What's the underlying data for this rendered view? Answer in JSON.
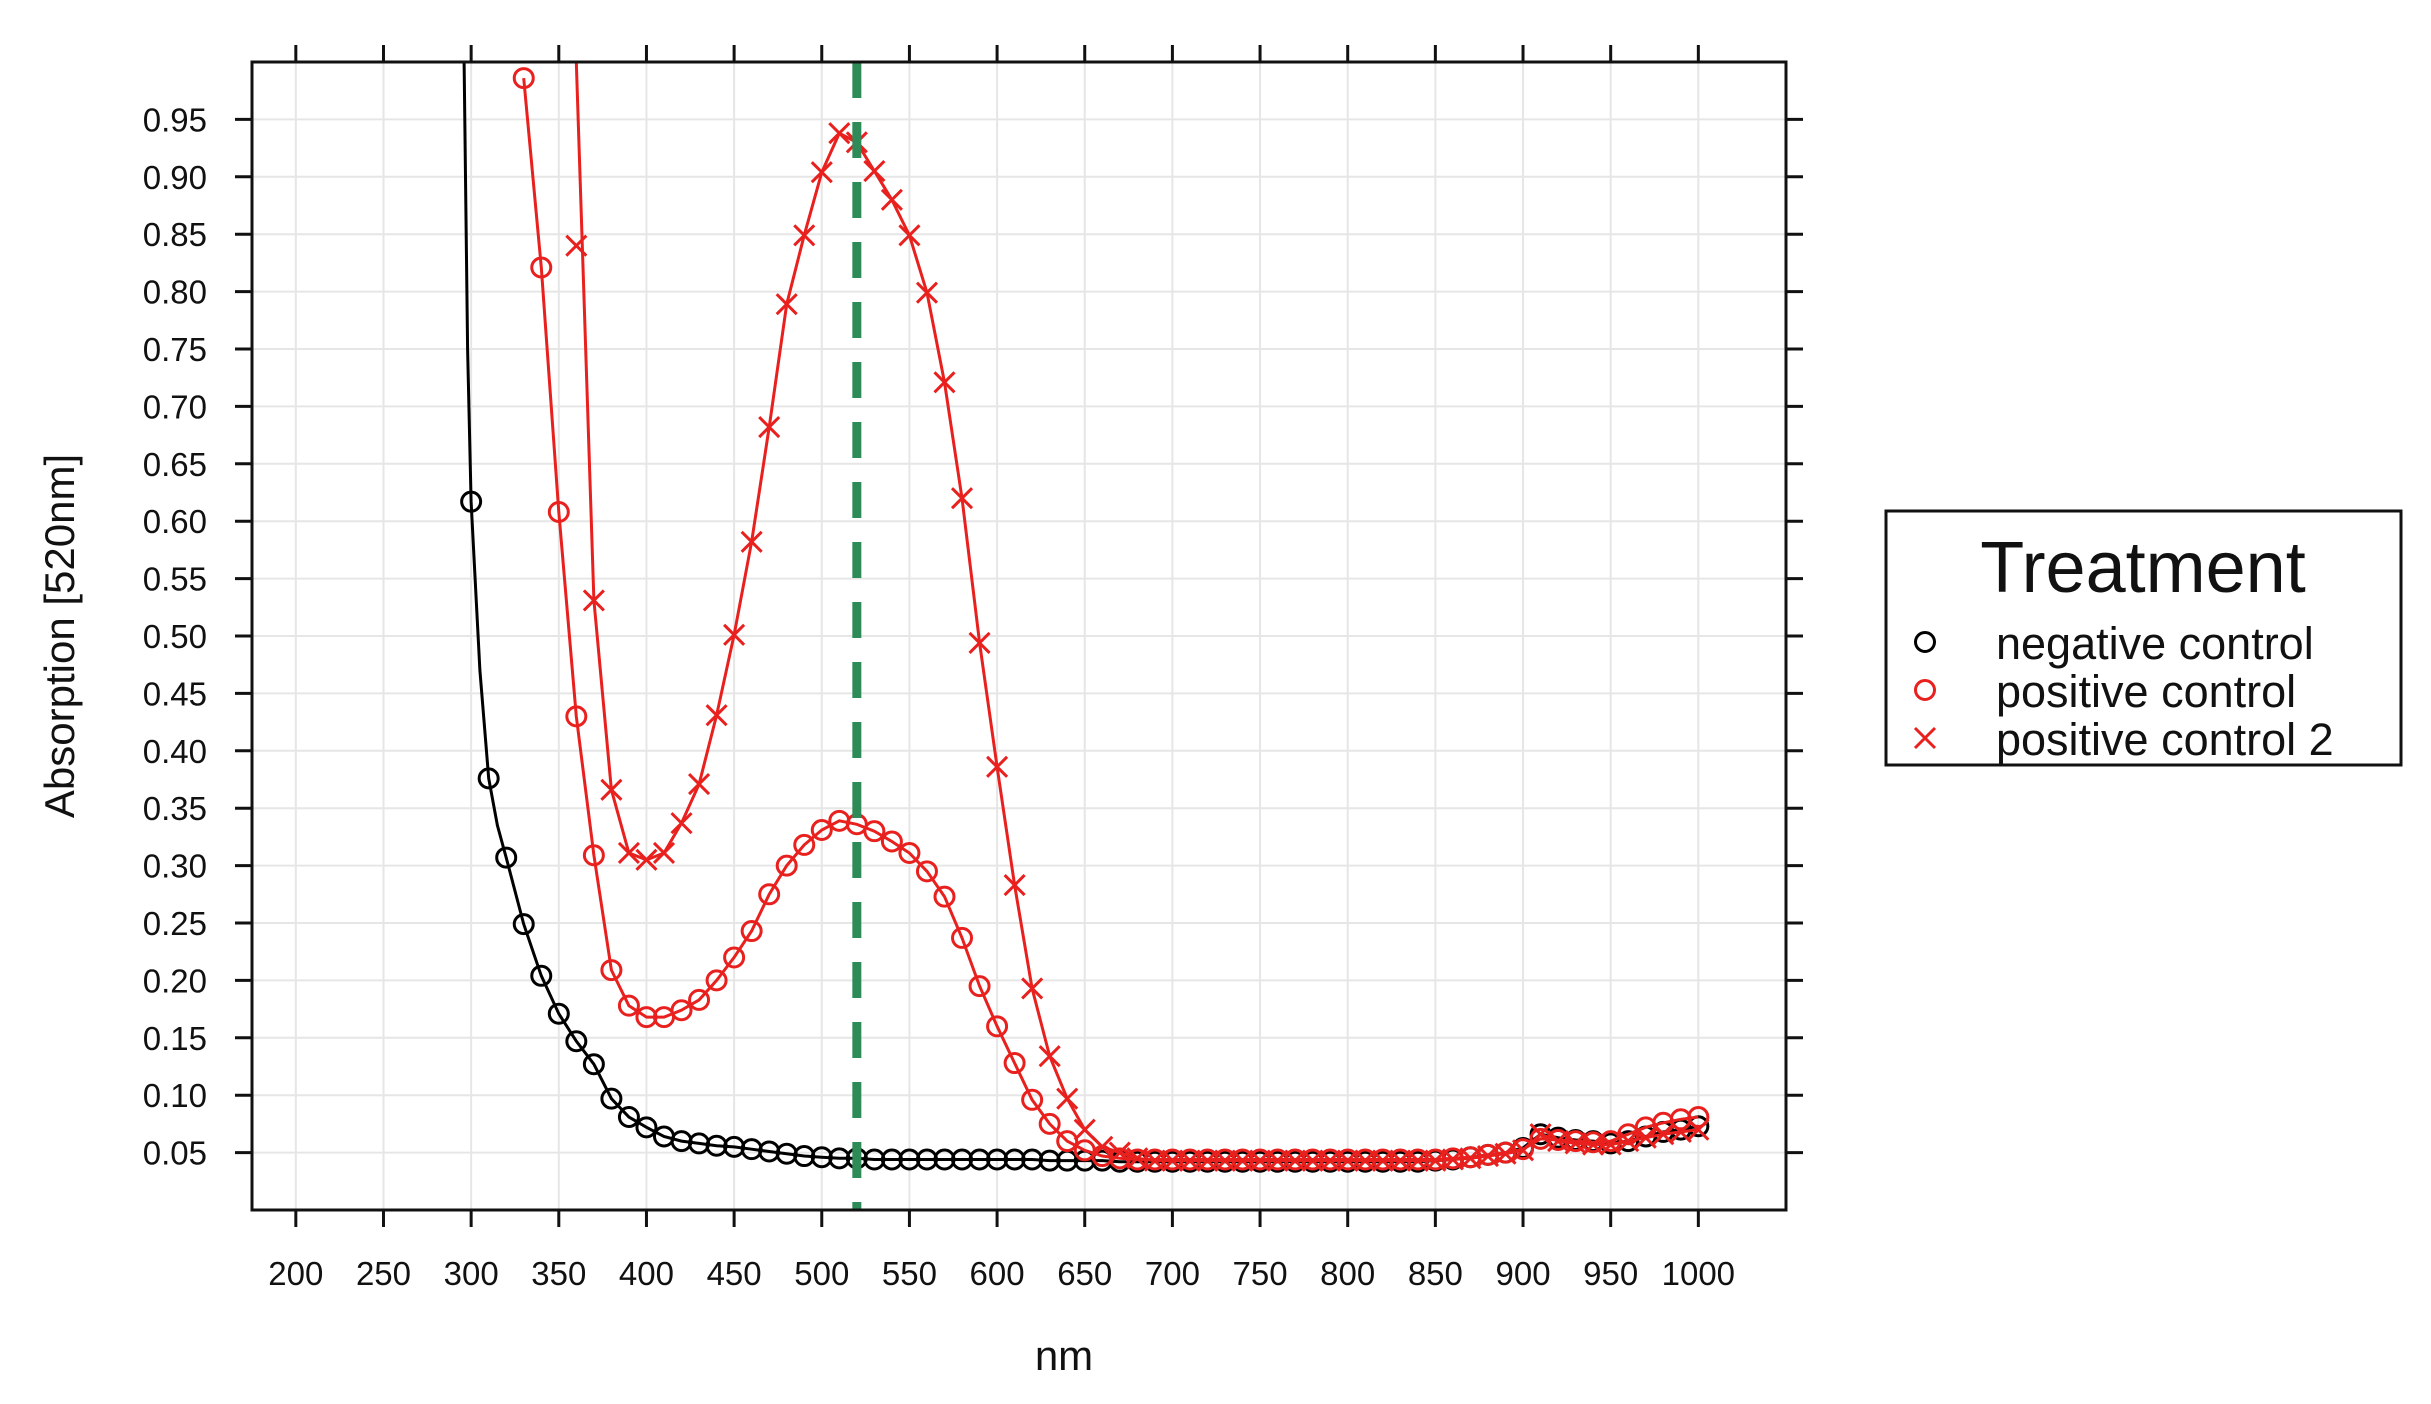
{
  "chart_data": {
    "type": "line",
    "title": "",
    "xlabel": "nm",
    "ylabel": "Absorption [520nm]",
    "xlim": [
      175,
      1050
    ],
    "ylim": [
      0.0,
      1.0
    ],
    "x_ticks": [
      200,
      250,
      300,
      350,
      400,
      450,
      500,
      550,
      600,
      650,
      700,
      750,
      800,
      850,
      900,
      950,
      1000
    ],
    "x_tick_labels": [
      "200",
      "250",
      "300",
      "350",
      "400",
      "450",
      "500",
      "550",
      "600",
      "650",
      "700",
      "750",
      "800",
      "850",
      "900",
      "950",
      "1000"
    ],
    "y_ticks": [
      0.05,
      0.1,
      0.15,
      0.2,
      0.25,
      0.3,
      0.35,
      0.4,
      0.45,
      0.5,
      0.55,
      0.6,
      0.65,
      0.7,
      0.75,
      0.8,
      0.85,
      0.9,
      0.95
    ],
    "y_tick_labels": [
      "0.05",
      "0.10",
      "0.15",
      "0.20",
      "0.25",
      "0.30",
      "0.35",
      "0.40",
      "0.45",
      "0.50",
      "0.55",
      "0.60",
      "0.65",
      "0.70",
      "0.75",
      "0.80",
      "0.85",
      "0.90",
      "0.95"
    ],
    "grid": true,
    "reference_line": {
      "x": 520,
      "color": "#2e8b57",
      "style": "dashed"
    },
    "legend": {
      "title": "Treatment",
      "placement": "right",
      "entries": [
        {
          "label": "negative control",
          "marker": "circle",
          "color": "#000000"
        },
        {
          "label": "positive control",
          "marker": "circle",
          "color": "#e8201e"
        },
        {
          "label": "positive control 2",
          "marker": "cross",
          "color": "#e8201e"
        }
      ]
    },
    "series": [
      {
        "name": "negative control",
        "color": "#000000",
        "marker": "circle",
        "line_points": [
          [
            296,
            1.0
          ],
          [
            298,
            0.75
          ],
          [
            300,
            0.617
          ],
          [
            305,
            0.47
          ],
          [
            310,
            0.376
          ],
          [
            315,
            0.335
          ],
          [
            320,
            0.307
          ],
          [
            330,
            0.249
          ],
          [
            340,
            0.204
          ],
          [
            350,
            0.171
          ],
          [
            360,
            0.147
          ],
          [
            370,
            0.127
          ],
          [
            380,
            0.097
          ],
          [
            390,
            0.081
          ],
          [
            400,
            0.072
          ]
        ],
        "x": [
          300,
          310,
          320,
          330,
          340,
          350,
          360,
          370,
          380,
          390,
          400,
          410,
          420,
          430,
          440,
          450,
          460,
          470,
          480,
          490,
          500,
          510,
          520,
          530,
          540,
          550,
          560,
          570,
          580,
          590,
          600,
          610,
          620,
          630,
          640,
          650,
          660,
          670,
          680,
          690,
          700,
          710,
          720,
          730,
          740,
          750,
          760,
          770,
          780,
          790,
          800,
          810,
          820,
          830,
          840,
          850,
          860,
          870,
          880,
          890,
          900,
          910,
          920,
          930,
          940,
          950,
          960,
          970,
          980,
          990,
          1000
        ],
        "y": [
          0.617,
          0.376,
          0.307,
          0.249,
          0.204,
          0.171,
          0.147,
          0.127,
          0.097,
          0.081,
          0.072,
          0.064,
          0.06,
          0.058,
          0.056,
          0.055,
          0.053,
          0.051,
          0.049,
          0.047,
          0.046,
          0.045,
          0.045,
          0.044,
          0.044,
          0.044,
          0.044,
          0.044,
          0.044,
          0.044,
          0.044,
          0.044,
          0.044,
          0.043,
          0.043,
          0.043,
          0.043,
          0.042,
          0.042,
          0.042,
          0.042,
          0.042,
          0.042,
          0.042,
          0.042,
          0.042,
          0.042,
          0.042,
          0.042,
          0.042,
          0.042,
          0.042,
          0.042,
          0.042,
          0.042,
          0.043,
          0.044,
          0.046,
          0.048,
          0.05,
          0.054,
          0.066,
          0.063,
          0.061,
          0.06,
          0.058,
          0.06,
          0.064,
          0.068,
          0.07,
          0.073
        ]
      },
      {
        "name": "positive control",
        "color": "#e8201e",
        "marker": "circle",
        "x": [
          330,
          340,
          350,
          360,
          370,
          380,
          390,
          400,
          410,
          420,
          430,
          440,
          450,
          460,
          470,
          480,
          490,
          500,
          510,
          520,
          530,
          540,
          550,
          560,
          570,
          580,
          590,
          600,
          610,
          620,
          630,
          640,
          650,
          660,
          670,
          680,
          690,
          700,
          710,
          720,
          730,
          740,
          750,
          760,
          770,
          780,
          790,
          800,
          810,
          820,
          830,
          840,
          850,
          860,
          870,
          880,
          890,
          900,
          910,
          920,
          930,
          940,
          950,
          960,
          970,
          980,
          990,
          1000
        ],
        "y": [
          0.986,
          0.821,
          0.608,
          0.43,
          0.309,
          0.209,
          0.178,
          0.168,
          0.168,
          0.174,
          0.183,
          0.2,
          0.22,
          0.243,
          0.275,
          0.3,
          0.318,
          0.331,
          0.339,
          0.336,
          0.33,
          0.321,
          0.311,
          0.295,
          0.273,
          0.237,
          0.195,
          0.16,
          0.128,
          0.096,
          0.075,
          0.06,
          0.052,
          0.047,
          0.045,
          0.044,
          0.044,
          0.044,
          0.044,
          0.044,
          0.044,
          0.044,
          0.044,
          0.044,
          0.044,
          0.044,
          0.044,
          0.044,
          0.044,
          0.044,
          0.044,
          0.044,
          0.044,
          0.045,
          0.046,
          0.048,
          0.05,
          0.053,
          0.062,
          0.061,
          0.06,
          0.059,
          0.06,
          0.066,
          0.072,
          0.076,
          0.079,
          0.081
        ]
      },
      {
        "name": "positive control 2",
        "color": "#e8201e",
        "marker": "cross",
        "line_points": [
          [
            360,
            1.0
          ]
        ],
        "x": [
          360,
          370,
          380,
          390,
          400,
          410,
          420,
          430,
          440,
          450,
          460,
          470,
          480,
          490,
          500,
          510,
          520,
          530,
          540,
          550,
          560,
          570,
          580,
          590,
          600,
          610,
          620,
          630,
          640,
          650,
          660,
          670,
          680,
          690,
          700,
          710,
          720,
          730,
          740,
          750,
          760,
          770,
          780,
          790,
          800,
          810,
          820,
          830,
          840,
          850,
          860,
          870,
          880,
          890,
          900,
          910,
          920,
          930,
          940,
          950,
          960,
          970,
          980,
          990,
          1000
        ],
        "y": [
          0.84,
          0.531,
          0.366,
          0.311,
          0.305,
          0.311,
          0.337,
          0.371,
          0.431,
          0.501,
          0.582,
          0.682,
          0.789,
          0.849,
          0.904,
          0.938,
          0.93,
          0.905,
          0.88,
          0.849,
          0.799,
          0.721,
          0.62,
          0.494,
          0.386,
          0.283,
          0.193,
          0.134,
          0.097,
          0.07,
          0.055,
          0.05,
          0.045,
          0.043,
          0.043,
          0.043,
          0.043,
          0.043,
          0.043,
          0.043,
          0.043,
          0.043,
          0.043,
          0.043,
          0.043,
          0.043,
          0.043,
          0.043,
          0.043,
          0.043,
          0.044,
          0.045,
          0.047,
          0.049,
          0.052,
          0.066,
          0.06,
          0.058,
          0.057,
          0.057,
          0.06,
          0.063,
          0.066,
          0.068,
          0.07
        ]
      }
    ]
  }
}
